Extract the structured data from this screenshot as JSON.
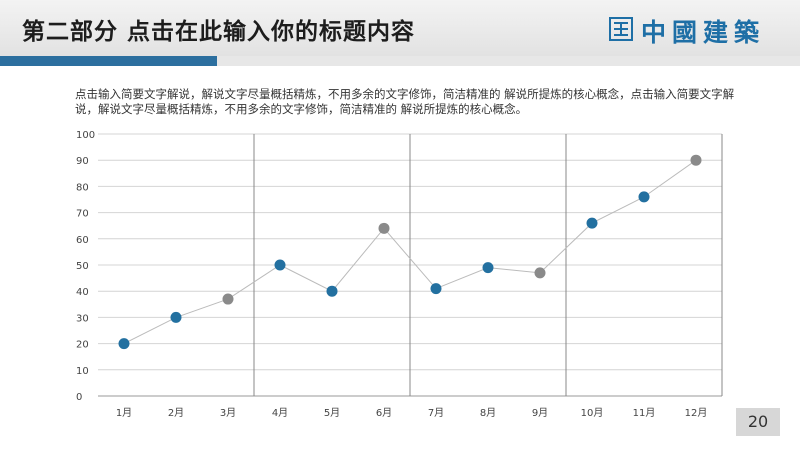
{
  "header": {
    "title": "第二部分  点击在此输入你的标题内容",
    "logo_text": "中國建築"
  },
  "description": "点击输入简要文字解说，解说文字尽量概括精炼，不用多余的文字修饰，简洁精准的 解说所提炼的核心概念，点击输入简要文字解说，解说文字尽量概括精炼，不用多余的文字修饰，简洁精准的 解说所提炼的核心概念。",
  "page_number": "20",
  "colors": {
    "accent": "#2c6f9f",
    "point_blue": "#2370a0",
    "point_gray": "#8a8a8a",
    "line": "#bbbbbb"
  },
  "chart_data": {
    "type": "line",
    "categories": [
      "1月",
      "2月",
      "3月",
      "4月",
      "5月",
      "6月",
      "7月",
      "8月",
      "9月",
      "10月",
      "11月",
      "12月"
    ],
    "values": [
      20,
      30,
      37,
      50,
      40,
      64,
      41,
      49,
      47,
      66,
      76,
      90
    ],
    "highlight": [
      false,
      false,
      true,
      false,
      false,
      true,
      false,
      false,
      true,
      false,
      false,
      true
    ],
    "ylim": [
      0,
      100
    ],
    "yticks": [
      0,
      10,
      20,
      30,
      40,
      50,
      60,
      70,
      80,
      90,
      100
    ],
    "grid": true,
    "legend": "none"
  }
}
